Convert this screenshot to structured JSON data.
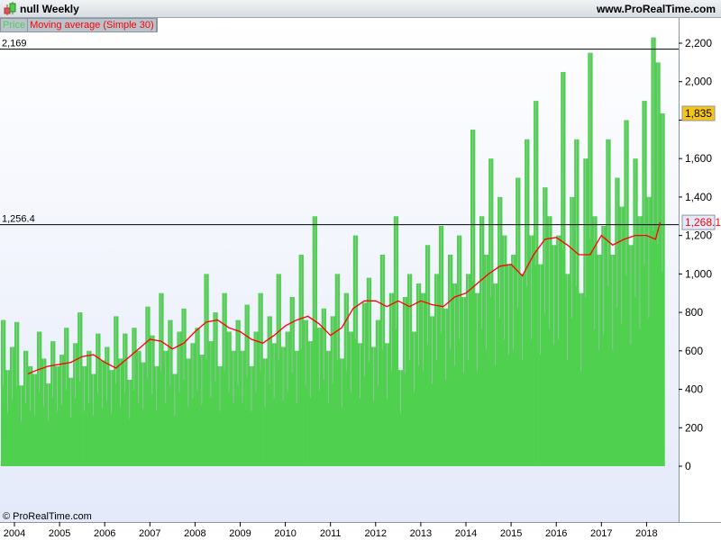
{
  "header": {
    "title": "null   Weekly",
    "site": "www.ProRealTime.com",
    "icon": "candlestick-icon"
  },
  "legend": {
    "price": "Price",
    "ma": "Moving average (Simple 30)"
  },
  "footer": {
    "copyright": "© ProRealTime.com"
  },
  "colors": {
    "bars": "#4fd04f",
    "ma": "#ff0000",
    "background_bottom": "#e4eafa"
  },
  "chart_data": {
    "type": "bar",
    "x_axis": {
      "ticks": [
        "2004",
        "2005",
        "2006",
        "2007",
        "2008",
        "2009",
        "2010",
        "2011",
        "2012",
        "2013",
        "2014",
        "2015",
        "2016",
        "2017",
        "2018"
      ],
      "range": [
        2003.7,
        2018.75
      ]
    },
    "y_axis": {
      "ticks": [
        0,
        200,
        400,
        600,
        800,
        1000,
        1200,
        1400,
        1600,
        1800,
        2000,
        2200
      ],
      "tick_labels": [
        "0",
        "200",
        "400",
        "600",
        "800",
        "1,000",
        "1,200",
        "1,400",
        "1,600",
        "",
        "2,000",
        "2,200"
      ],
      "range": [
        0,
        2200
      ],
      "position": "right"
    },
    "horizontal_lines": [
      {
        "value": 2169,
        "label": "2,169"
      },
      {
        "value": 1256.4,
        "label": "1,256.4"
      }
    ],
    "last_value_tags": [
      {
        "value": 1835,
        "label": "1,835",
        "series": "Price"
      },
      {
        "value": 1268.1,
        "label": "1,268.1",
        "series": "Moving average (Simple 30)"
      }
    ],
    "series": [
      {
        "name": "Price",
        "type": "bar",
        "start": 2003.7,
        "step": 0.1,
        "values": [
          760,
          500,
          620,
          750,
          420,
          600,
          520,
          480,
          700,
          560,
          430,
          650,
          520,
          580,
          720,
          460,
          640,
          800,
          520,
          600,
          480,
          690,
          550,
          620,
          500,
          780,
          560,
          690,
          450,
          720,
          600,
          540,
          830,
          680,
          520,
          900,
          600,
          760,
          480,
          700,
          820,
          560,
          640,
          720,
          580,
          1000,
          650,
          800,
          520,
          900,
          700,
          600,
          760,
          600,
          840,
          520,
          700,
          900,
          560,
          780,
          640,
          1000,
          620,
          700,
          880,
          600,
          1100,
          760,
          650,
          1300,
          720,
          820,
          600,
          780,
          1000,
          560,
          900,
          700,
          1200,
          640,
          850,
          980,
          620,
          760,
          1100,
          640,
          900,
          1300,
          500,
          880,
          1000,
          700,
          950,
          900,
          1150,
          780,
          1000,
          1250,
          820,
          1100,
          950,
          1200,
          880,
          1000,
          1750,
          900,
          1300,
          1100,
          1600,
          950,
          1400,
          1200,
          1050,
          1100,
          1500,
          1000,
          1700,
          1200,
          1900,
          1050,
          1450,
          1300,
          1150,
          1200,
          2050,
          1000,
          1400,
          1700,
          900,
          1600,
          2150,
          1300,
          1100,
          1250,
          1700,
          1100,
          1500,
          1350,
          1800,
          1150,
          1600,
          1300,
          1900,
          1400,
          2230,
          2100,
          1835
        ]
      },
      {
        "name": "Moving average (Simple 30)",
        "type": "line",
        "points": [
          [
            2004.3,
            480
          ],
          [
            2004.5,
            500
          ],
          [
            2004.75,
            520
          ],
          [
            2005.0,
            530
          ],
          [
            2005.25,
            540
          ],
          [
            2005.5,
            570
          ],
          [
            2005.75,
            580
          ],
          [
            2006.0,
            540
          ],
          [
            2006.25,
            510
          ],
          [
            2006.5,
            560
          ],
          [
            2006.75,
            610
          ],
          [
            2007.0,
            660
          ],
          [
            2007.25,
            650
          ],
          [
            2007.5,
            610
          ],
          [
            2007.75,
            640
          ],
          [
            2008.0,
            700
          ],
          [
            2008.25,
            750
          ],
          [
            2008.5,
            760
          ],
          [
            2008.75,
            720
          ],
          [
            2009.0,
            700
          ],
          [
            2009.25,
            660
          ],
          [
            2009.5,
            640
          ],
          [
            2009.75,
            680
          ],
          [
            2010.0,
            730
          ],
          [
            2010.25,
            760
          ],
          [
            2010.5,
            780
          ],
          [
            2010.75,
            740
          ],
          [
            2011.0,
            680
          ],
          [
            2011.25,
            720
          ],
          [
            2011.5,
            820
          ],
          [
            2011.75,
            860
          ],
          [
            2012.0,
            860
          ],
          [
            2012.25,
            830
          ],
          [
            2012.5,
            860
          ],
          [
            2012.75,
            830
          ],
          [
            2013.0,
            860
          ],
          [
            2013.25,
            840
          ],
          [
            2013.5,
            830
          ],
          [
            2013.75,
            880
          ],
          [
            2014.0,
            900
          ],
          [
            2014.25,
            950
          ],
          [
            2014.5,
            1000
          ],
          [
            2014.75,
            1040
          ],
          [
            2015.0,
            1050
          ],
          [
            2015.25,
            990
          ],
          [
            2015.5,
            1100
          ],
          [
            2015.75,
            1180
          ],
          [
            2016.0,
            1190
          ],
          [
            2016.25,
            1150
          ],
          [
            2016.5,
            1100
          ],
          [
            2016.75,
            1100
          ],
          [
            2017.0,
            1200
          ],
          [
            2017.25,
            1150
          ],
          [
            2017.5,
            1180
          ],
          [
            2017.75,
            1200
          ],
          [
            2018.0,
            1200
          ],
          [
            2018.2,
            1180
          ],
          [
            2018.3,
            1268.1
          ]
        ]
      }
    ]
  }
}
